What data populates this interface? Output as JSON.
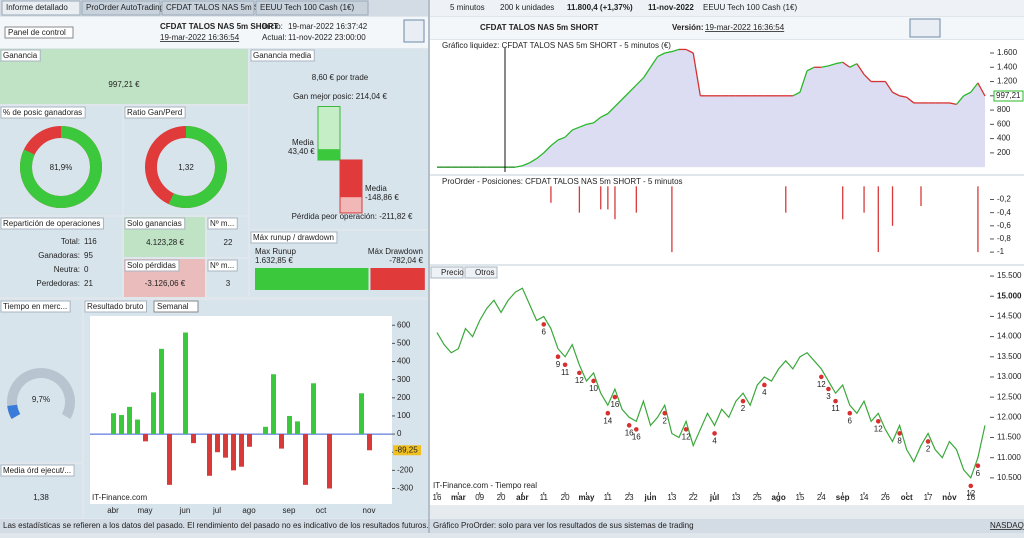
{
  "tabs": [
    "Informe detallado",
    "ProOrder AutoTrading",
    "CFDAT TALOS NAS 5m SHORT",
    "EEUU Tech 100 Cash (1€)"
  ],
  "right_toolbar": {
    "interval": "5 minutos",
    "units": "200 k unidades",
    "price": "11.800,4 (+1,37%)",
    "date": "11-nov-2022",
    "instrument": "EEUU Tech 100 Cash (1€)"
  },
  "header": {
    "panel_select": "Panel de control",
    "strategy": "CFDAT TALOS NAS 5m SHORT",
    "strategy_date": "19-mar-2022 16:36:54",
    "start_label": "Inicio:",
    "start": "19-mar-2022 16:37:42",
    "current_label": "Actual:",
    "current": "11-nov-2022 23:00:00",
    "right_strategy": "CFDAT TALOS NAS 5m SHORT",
    "version_label": "Versión:",
    "version": "19-mar-2022 16:36:54"
  },
  "ganancia": {
    "title": "Ganancia",
    "value": "997,21 €"
  },
  "ganancia_media": {
    "title": "Ganancia media",
    "value": "8,60 € por trade",
    "best": "Gan mejor posic: 214,04 €",
    "win_label": "Media",
    "win": "43,40 €",
    "loss_label": "Media",
    "loss": "-148,86 €",
    "worst": "Pérdida peor operación: -211,82 €",
    "bars": {
      "best": 214.04,
      "win": 43.4,
      "loss": -148.86,
      "worst": -211.82
    }
  },
  "winners_pct": {
    "title": "% de posic ganadoras",
    "value": 81.9,
    "label": "81,9%"
  },
  "ratio": {
    "title": "Ratio Gan/Perd",
    "value": 1.32,
    "label": "1,32"
  },
  "distribution": {
    "title": "Repartición de operaciones",
    "rows": [
      {
        "label": "Total:",
        "value": 116
      },
      {
        "label": "Ganadoras:",
        "value": 95
      },
      {
        "label": "Neutra:",
        "value": 0
      },
      {
        "label": "Perdedoras:",
        "value": 21
      }
    ]
  },
  "only_gains": {
    "title": "Solo ganancias",
    "value": "4.123,28 €",
    "count_title": "Nº m...",
    "count": 22
  },
  "only_losses": {
    "title": "Solo pérdidas",
    "value": "-3.126,06 €",
    "count_title": "Nº m...",
    "count": 3
  },
  "runup": {
    "title": "Máx runup / drawdown",
    "runup_label": "Max Runup",
    "runup_text": "1.632,85 €",
    "drawdown_label": "Máx Drawdown",
    "drawdown_text": "-782,04 €",
    "runup": 1632.85,
    "drawdown": -782.04
  },
  "market_time": {
    "title": "Tiempo en merc...",
    "value": 9.7,
    "label": "9,7%"
  },
  "avg_orders": {
    "title": "Media órd ejecut/...",
    "value": "1,38"
  },
  "weekly_chart": {
    "type": "bar",
    "title": "Resultado bruto",
    "period": "Semanal",
    "source": "IT-Finance.com",
    "categories": [
      "abr",
      null,
      null,
      null,
      "may",
      null,
      null,
      null,
      null,
      "jun",
      null,
      null,
      null,
      "jul",
      null,
      null,
      null,
      "ago",
      null,
      null,
      null,
      null,
      "sep",
      null,
      null,
      null,
      "oct",
      null,
      null,
      null,
      null,
      null,
      "nov"
    ],
    "values": [
      115,
      105,
      150,
      80,
      -40,
      230,
      470,
      -280,
      0,
      560,
      -50,
      0,
      -230,
      -100,
      -130,
      -200,
      -180,
      -70,
      0,
      40,
      330,
      -80,
      100,
      70,
      -280,
      280,
      0,
      -300,
      0,
      0,
      0,
      225,
      -89.25
    ],
    "last_label": "-89,25",
    "ylim": [
      -380,
      640
    ],
    "yticks": [
      {
        "value": -300,
        "label": "-300"
      },
      {
        "value": -200,
        "label": "-200"
      },
      {
        "value": -100,
        "label": "-100"
      },
      0,
      100,
      200,
      300,
      400,
      500,
      600
    ]
  },
  "equity_chart": {
    "type": "area",
    "title": "Gráfico liquidez: CFDAT TALOS NAS 5m SHORT - 5 minutos (€)",
    "values": [
      0,
      0,
      0,
      0,
      0,
      0,
      0,
      0,
      0,
      0,
      0,
      0,
      20,
      60,
      120,
      200,
      300,
      380,
      420,
      520,
      560,
      600,
      620,
      700,
      750,
      850,
      950,
      1050,
      1150,
      1250,
      1400,
      1550,
      1600,
      1620,
      1650,
      1650,
      1600,
      1000,
      1000,
      1000,
      1000,
      1000,
      1000,
      1000,
      1000,
      1000,
      1000,
      1000,
      1000,
      1000,
      1000,
      1050,
      1350,
      1400,
      1400,
      1420,
      1450,
      1470,
      1400,
      1450,
      1300,
      1200,
      1200,
      1200,
      1050,
      1000,
      980,
      900,
      900,
      900,
      900,
      900,
      900,
      880,
      1000,
      1050,
      1180,
      997.21
    ],
    "last_label": "997,21",
    "ylim": [
      -40,
      1670
    ],
    "yticks": [
      200,
      400,
      600,
      800,
      {
        "value": 1000,
        "label": "1.000"
      },
      {
        "value": 1200,
        "label": "1.200"
      },
      {
        "value": 1400,
        "label": "1.400"
      },
      {
        "value": 1600,
        "label": "1.600"
      }
    ]
  },
  "positions_chart": {
    "type": "bar",
    "title": "ProOrder - Posiciones: CFDAT TALOS NAS 5m SHORT - 5 minutos",
    "values": [
      0,
      0,
      0,
      0,
      0,
      0,
      0,
      0,
      0,
      0,
      0,
      0,
      0,
      0,
      0,
      0,
      -0.25,
      0,
      0,
      0,
      -0.4,
      0,
      0,
      -0.35,
      -0.35,
      -0.5,
      0,
      0,
      -0.4,
      0,
      0,
      0,
      0,
      -1,
      0,
      0,
      0,
      0,
      0,
      0,
      0,
      0,
      0,
      0,
      0,
      0,
      0,
      0,
      0,
      -0.4,
      0,
      0,
      0,
      0,
      0,
      0,
      0,
      -0.5,
      0,
      0,
      -0.4,
      0,
      -1,
      0,
      -0.6,
      0,
      0,
      0,
      -0.3,
      0,
      0,
      0,
      0,
      0,
      0,
      0,
      -1,
      0
    ],
    "ylim": [
      -1.15,
      0.02
    ],
    "yticks": [
      {
        "value": -0.2,
        "label": "-0,2"
      },
      {
        "value": -0.4,
        "label": "-0,4"
      },
      {
        "value": -0.6,
        "label": "-0,6"
      },
      {
        "value": -0.8,
        "label": "-0,8"
      },
      {
        "value": -1,
        "label": "-1"
      }
    ]
  },
  "price_chart": {
    "type": "line",
    "tabs": [
      "Precio",
      "Otros"
    ],
    "source": "IT-Finance.com - Tiempo real",
    "categories": [
      "16",
      null,
      null,
      "mar",
      null,
      null,
      "09",
      null,
      null,
      "20",
      null,
      null,
      "abr",
      null,
      null,
      "11",
      null,
      null,
      "20",
      null,
      null,
      "may",
      null,
      null,
      "11",
      null,
      null,
      "23",
      null,
      null,
      "jun",
      null,
      null,
      "13",
      null,
      null,
      "22",
      null,
      null,
      "jul",
      null,
      null,
      "13",
      null,
      null,
      "25",
      null,
      null,
      "ago",
      null,
      null,
      "15",
      null,
      null,
      "24",
      null,
      null,
      "sep",
      null,
      null,
      "14",
      null,
      null,
      "26",
      null,
      null,
      "oct",
      null,
      null,
      "17",
      null,
      null,
      "nov",
      null,
      null,
      "16",
      null,
      null
    ],
    "values": [
      14100,
      13800,
      13600,
      13700,
      14200,
      14000,
      14400,
      14700,
      14900,
      14600,
      14900,
      15100,
      15200,
      14800,
      14400,
      14500,
      14200,
      13700,
      13500,
      13800,
      13300,
      12900,
      13100,
      12600,
      12300,
      12700,
      12200,
      12000,
      11900,
      12400,
      11800,
      12000,
      12300,
      11600,
      11500,
      11900,
      11300,
      11700,
      12100,
      11800,
      12200,
      12000,
      12400,
      12600,
      12300,
      12800,
      13000,
      12900,
      13200,
      13400,
      13200,
      13500,
      13600,
      13400,
      13200,
      12900,
      12600,
      12800,
      12300,
      12100,
      12400,
      11900,
      12100,
      11700,
      11400,
      11800,
      11200,
      10900,
      11300,
      11600,
      11200,
      11000,
      11400,
      11200,
      10700,
      10500,
      11000,
      11800
    ],
    "signals": [
      {
        "at": 15,
        "label": "6"
      },
      {
        "at": 17,
        "label": "9"
      },
      {
        "at": 18,
        "label": "11"
      },
      {
        "at": 20,
        "label": "12"
      },
      {
        "at": 22,
        "label": "10"
      },
      {
        "at": 24,
        "label": "14"
      },
      {
        "at": 25,
        "label": "16"
      },
      {
        "at": 27,
        "label": "16"
      },
      {
        "at": 28,
        "label": "16"
      },
      {
        "at": 32,
        "label": "2"
      },
      {
        "at": 35,
        "label": "12"
      },
      {
        "at": 39,
        "label": "4"
      },
      {
        "at": 43,
        "label": "2"
      },
      {
        "at": 46,
        "label": "4"
      },
      {
        "at": 54,
        "label": "12"
      },
      {
        "at": 55,
        "label": "3"
      },
      {
        "at": 56,
        "label": "11"
      },
      {
        "at": 58,
        "label": "6"
      },
      {
        "at": 62,
        "label": "12"
      },
      {
        "at": 65,
        "label": "8"
      },
      {
        "at": 69,
        "label": "2"
      },
      {
        "at": 75,
        "label": "12"
      },
      {
        "at": 76,
        "label": "6"
      }
    ],
    "ylim": [
      10150,
      15700
    ],
    "yticks": [
      {
        "value": 10500,
        "label": "10.500"
      },
      {
        "value": 11000,
        "label": "11.000"
      },
      {
        "value": 11500,
        "label": "11.500"
      },
      {
        "value": 12000,
        "label": "12.000"
      },
      {
        "value": 12500,
        "label": "12.500"
      },
      {
        "value": 13000,
        "label": "13.000"
      },
      {
        "value": 13500,
        "label": "13.500"
      },
      {
        "value": 14000,
        "label": "14.000"
      },
      {
        "value": 14500,
        "label": "14.500"
      },
      {
        "value": 15000,
        "label": "15.000"
      },
      {
        "value": 15500,
        "label": "15.500"
      }
    ]
  },
  "status": {
    "left": "Las estadísticas se refieren a los datos del pasado. El rendimiento del pasado no es indicativo de los resultados futuros.",
    "right": "Gráfico ProOrder: solo para ver los resultados de sus sistemas de trading",
    "exchange": "NASDAQ"
  }
}
